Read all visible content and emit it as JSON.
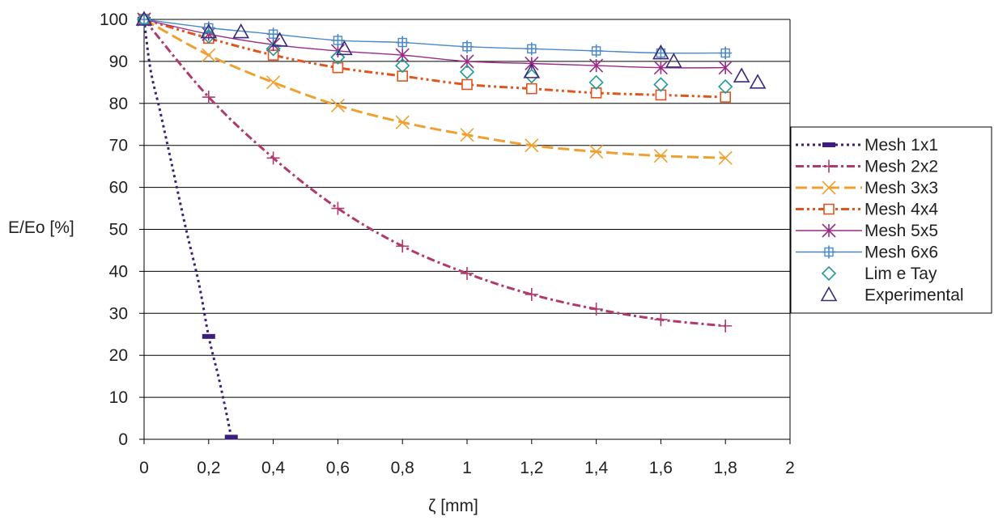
{
  "chart_data": {
    "type": "line",
    "title": "",
    "xlabel": "ζ [mm]",
    "ylabel": "E/Eo [%]",
    "xlim": [
      0,
      2
    ],
    "ylim": [
      0,
      100
    ],
    "x_ticks": [
      "0",
      "0,2",
      "0,4",
      "0,6",
      "0,8",
      "1",
      "1,2",
      "1,4",
      "1,6",
      "1,8",
      "2"
    ],
    "y_ticks": [
      "0",
      "10",
      "20",
      "30",
      "40",
      "50",
      "60",
      "70",
      "80",
      "90",
      "100"
    ],
    "grid": "horizontal",
    "legend_position": "right",
    "series": [
      {
        "name": "Mesh 1x1",
        "color": "#3b1f7a",
        "dash": "3,4",
        "marker": "bar",
        "line": true,
        "x": [
          0,
          0.2,
          0.27
        ],
        "y": [
          100,
          24.5,
          0.5
        ],
        "curve": [
          [
            0,
            100
          ],
          [
            0.02,
            88
          ],
          [
            0.05,
            78
          ],
          [
            0.09,
            64
          ],
          [
            0.13,
            50
          ],
          [
            0.17,
            37
          ],
          [
            0.2,
            24.5
          ],
          [
            0.23,
            15
          ],
          [
            0.25,
            8
          ],
          [
            0.27,
            0.5
          ]
        ]
      },
      {
        "name": "Mesh 2x2",
        "color": "#b03a6e",
        "dash": "10,4,3,4",
        "marker": "plus",
        "line": true,
        "x": [
          0,
          0.2,
          0.4,
          0.6,
          0.8,
          1,
          1.2,
          1.4,
          1.6,
          1.8
        ],
        "y": [
          100,
          81.5,
          67,
          55,
          46,
          39.5,
          34.5,
          31,
          28.5,
          27
        ]
      },
      {
        "name": "Mesh 3x3",
        "color": "#f0a030",
        "dash": "14,6",
        "marker": "x",
        "line": true,
        "x": [
          0,
          0.2,
          0.4,
          0.6,
          0.8,
          1,
          1.2,
          1.4,
          1.6,
          1.8
        ],
        "y": [
          100,
          91.5,
          85,
          79.5,
          75.5,
          72.5,
          70,
          68.5,
          67.5,
          67
        ]
      },
      {
        "name": "Mesh 4x4",
        "color": "#e0551e",
        "dash": "10,4,3,4,3,4",
        "marker": "square",
        "line": true,
        "x": [
          0,
          0.2,
          0.4,
          0.6,
          0.8,
          1,
          1.2,
          1.4,
          1.6,
          1.8
        ],
        "y": [
          100,
          95.5,
          91.5,
          88.5,
          86.5,
          84.5,
          83.5,
          82.5,
          82,
          81.5
        ]
      },
      {
        "name": "Mesh 5x5",
        "color": "#9a2a86",
        "dash": "",
        "marker": "asterisk",
        "line": true,
        "x": [
          0,
          0.2,
          0.4,
          0.6,
          0.8,
          1,
          1.2,
          1.4,
          1.6,
          1.8
        ],
        "y": [
          100,
          96.5,
          94,
          92.5,
          91.5,
          90,
          89.5,
          89,
          88.5,
          88.5
        ]
      },
      {
        "name": "Mesh 6x6",
        "color": "#4a88c8",
        "dash": "",
        "marker": "cross-square",
        "line": true,
        "x": [
          0,
          0.2,
          0.4,
          0.6,
          0.8,
          1,
          1.2,
          1.4,
          1.6,
          1.8
        ],
        "y": [
          100,
          98,
          96.5,
          95,
          94.5,
          93.5,
          93,
          92.5,
          92,
          92
        ]
      },
      {
        "name": "Lim e Tay",
        "color": "#1f9a9a",
        "dash": "",
        "marker": "diamond",
        "line": false,
        "x": [
          0,
          0.2,
          0.4,
          0.6,
          0.8,
          1,
          1.2,
          1.4,
          1.6,
          1.8
        ],
        "y": [
          100,
          96,
          93,
          91,
          89,
          87.5,
          86.5,
          85,
          84.5,
          84
        ]
      },
      {
        "name": "Experimental",
        "color": "#3a2a7a",
        "dash": "",
        "marker": "triangle",
        "line": false,
        "x": [
          0,
          0.2,
          0.3,
          0.42,
          0.62,
          1.2,
          1.6,
          1.64,
          1.85,
          1.9
        ],
        "y": [
          100,
          97,
          97,
          95,
          93,
          87.5,
          92,
          90,
          86.5,
          85
        ]
      }
    ]
  }
}
